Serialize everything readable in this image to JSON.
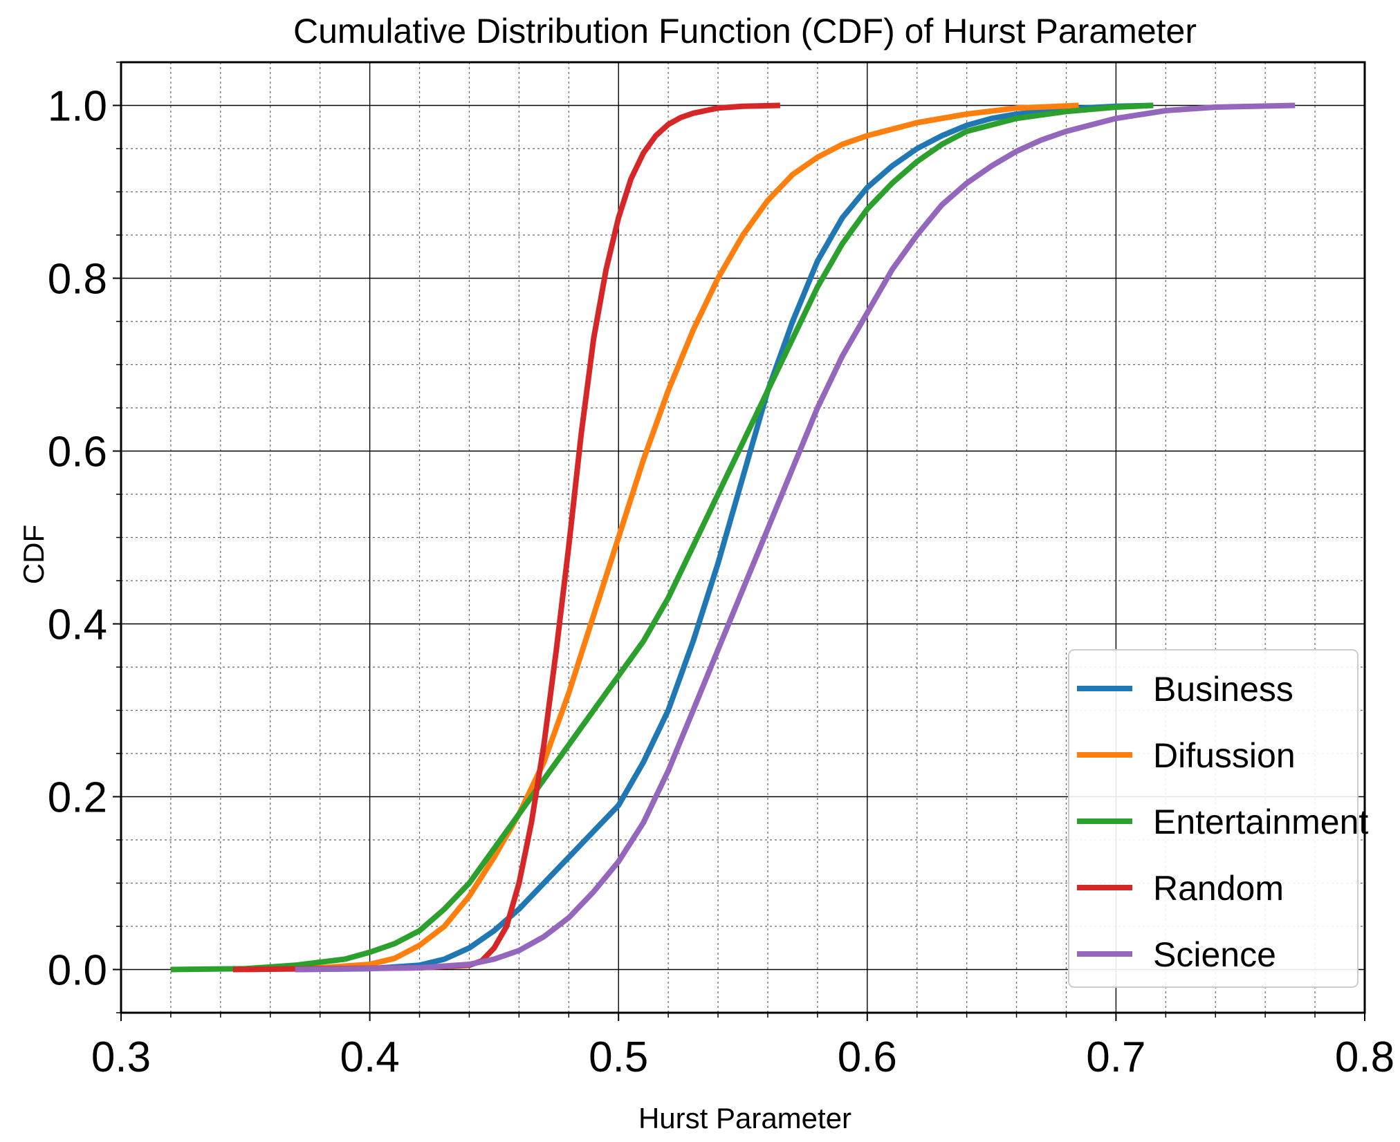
{
  "chart_data": {
    "type": "line",
    "title": "Cumulative Distribution Function (CDF) of Hurst Parameter",
    "xlabel": "Hurst Parameter",
    "ylabel": "CDF",
    "xlim": [
      0.3,
      0.8
    ],
    "ylim": [
      -0.05,
      1.05
    ],
    "x_ticks": [
      0.3,
      0.4,
      0.5,
      0.6,
      0.7,
      0.8
    ],
    "x_tick_labels": [
      "0.3",
      "0.4",
      "0.5",
      "0.6",
      "0.7",
      "0.8"
    ],
    "y_ticks": [
      0.0,
      0.2,
      0.4,
      0.6,
      0.8,
      1.0
    ],
    "y_tick_labels": [
      "0.0",
      "0.2",
      "0.4",
      "0.6",
      "0.8",
      "1.0"
    ],
    "grid": true,
    "minor_grid": true,
    "legend_position": "bottom-right",
    "series": [
      {
        "name": "Business",
        "color": "#1f77b4",
        "x": [
          0.37,
          0.4,
          0.42,
          0.43,
          0.44,
          0.45,
          0.46,
          0.47,
          0.48,
          0.49,
          0.5,
          0.51,
          0.52,
          0.53,
          0.54,
          0.55,
          0.56,
          0.57,
          0.58,
          0.59,
          0.6,
          0.61,
          0.62,
          0.63,
          0.64,
          0.65,
          0.66,
          0.68,
          0.7,
          0.715
        ],
        "y": [
          0.0,
          0.001,
          0.005,
          0.012,
          0.025,
          0.045,
          0.07,
          0.1,
          0.13,
          0.16,
          0.19,
          0.24,
          0.3,
          0.38,
          0.47,
          0.57,
          0.67,
          0.75,
          0.82,
          0.87,
          0.905,
          0.93,
          0.95,
          0.965,
          0.977,
          0.985,
          0.99,
          0.996,
          0.999,
          1.0
        ]
      },
      {
        "name": "Difussion",
        "color": "#ff7f0e",
        "x": [
          0.35,
          0.38,
          0.4,
          0.41,
          0.42,
          0.43,
          0.44,
          0.45,
          0.46,
          0.47,
          0.48,
          0.49,
          0.5,
          0.51,
          0.52,
          0.53,
          0.54,
          0.55,
          0.56,
          0.57,
          0.58,
          0.59,
          0.6,
          0.62,
          0.64,
          0.66,
          0.685
        ],
        "y": [
          0.0,
          0.002,
          0.006,
          0.013,
          0.028,
          0.05,
          0.085,
          0.13,
          0.18,
          0.24,
          0.32,
          0.41,
          0.5,
          0.59,
          0.67,
          0.74,
          0.8,
          0.85,
          0.89,
          0.92,
          0.94,
          0.955,
          0.965,
          0.98,
          0.99,
          0.997,
          1.0
        ]
      },
      {
        "name": "Entertainment",
        "color": "#2ca02c",
        "x": [
          0.32,
          0.35,
          0.37,
          0.39,
          0.4,
          0.41,
          0.42,
          0.43,
          0.44,
          0.45,
          0.46,
          0.47,
          0.48,
          0.49,
          0.5,
          0.51,
          0.52,
          0.53,
          0.54,
          0.55,
          0.56,
          0.57,
          0.58,
          0.59,
          0.6,
          0.61,
          0.62,
          0.63,
          0.64,
          0.66,
          0.68,
          0.7,
          0.715
        ],
        "y": [
          0.0,
          0.001,
          0.005,
          0.012,
          0.02,
          0.03,
          0.045,
          0.07,
          0.1,
          0.14,
          0.18,
          0.22,
          0.26,
          0.3,
          0.34,
          0.38,
          0.43,
          0.49,
          0.55,
          0.61,
          0.67,
          0.73,
          0.79,
          0.84,
          0.88,
          0.91,
          0.935,
          0.955,
          0.97,
          0.985,
          0.993,
          0.998,
          1.0
        ]
      },
      {
        "name": "Random",
        "color": "#d62728",
        "x": [
          0.345,
          0.38,
          0.42,
          0.44,
          0.445,
          0.45,
          0.455,
          0.46,
          0.465,
          0.47,
          0.475,
          0.48,
          0.485,
          0.49,
          0.495,
          0.5,
          0.505,
          0.51,
          0.515,
          0.52,
          0.525,
          0.53,
          0.535,
          0.54,
          0.55,
          0.565
        ],
        "y": [
          0.0,
          0.001,
          0.002,
          0.005,
          0.01,
          0.025,
          0.05,
          0.1,
          0.17,
          0.26,
          0.37,
          0.49,
          0.62,
          0.73,
          0.81,
          0.87,
          0.915,
          0.945,
          0.965,
          0.978,
          0.986,
          0.991,
          0.994,
          0.997,
          0.999,
          1.0
        ]
      },
      {
        "name": "Science",
        "color": "#9467bd",
        "x": [
          0.37,
          0.42,
          0.44,
          0.45,
          0.46,
          0.47,
          0.48,
          0.49,
          0.5,
          0.51,
          0.52,
          0.53,
          0.54,
          0.55,
          0.56,
          0.57,
          0.58,
          0.59,
          0.6,
          0.61,
          0.62,
          0.63,
          0.64,
          0.65,
          0.66,
          0.67,
          0.68,
          0.7,
          0.72,
          0.74,
          0.772
        ],
        "y": [
          0.0,
          0.002,
          0.006,
          0.012,
          0.022,
          0.038,
          0.06,
          0.09,
          0.125,
          0.17,
          0.23,
          0.3,
          0.37,
          0.44,
          0.51,
          0.58,
          0.65,
          0.71,
          0.76,
          0.81,
          0.85,
          0.885,
          0.91,
          0.93,
          0.947,
          0.96,
          0.97,
          0.985,
          0.994,
          0.998,
          1.0
        ]
      }
    ]
  }
}
